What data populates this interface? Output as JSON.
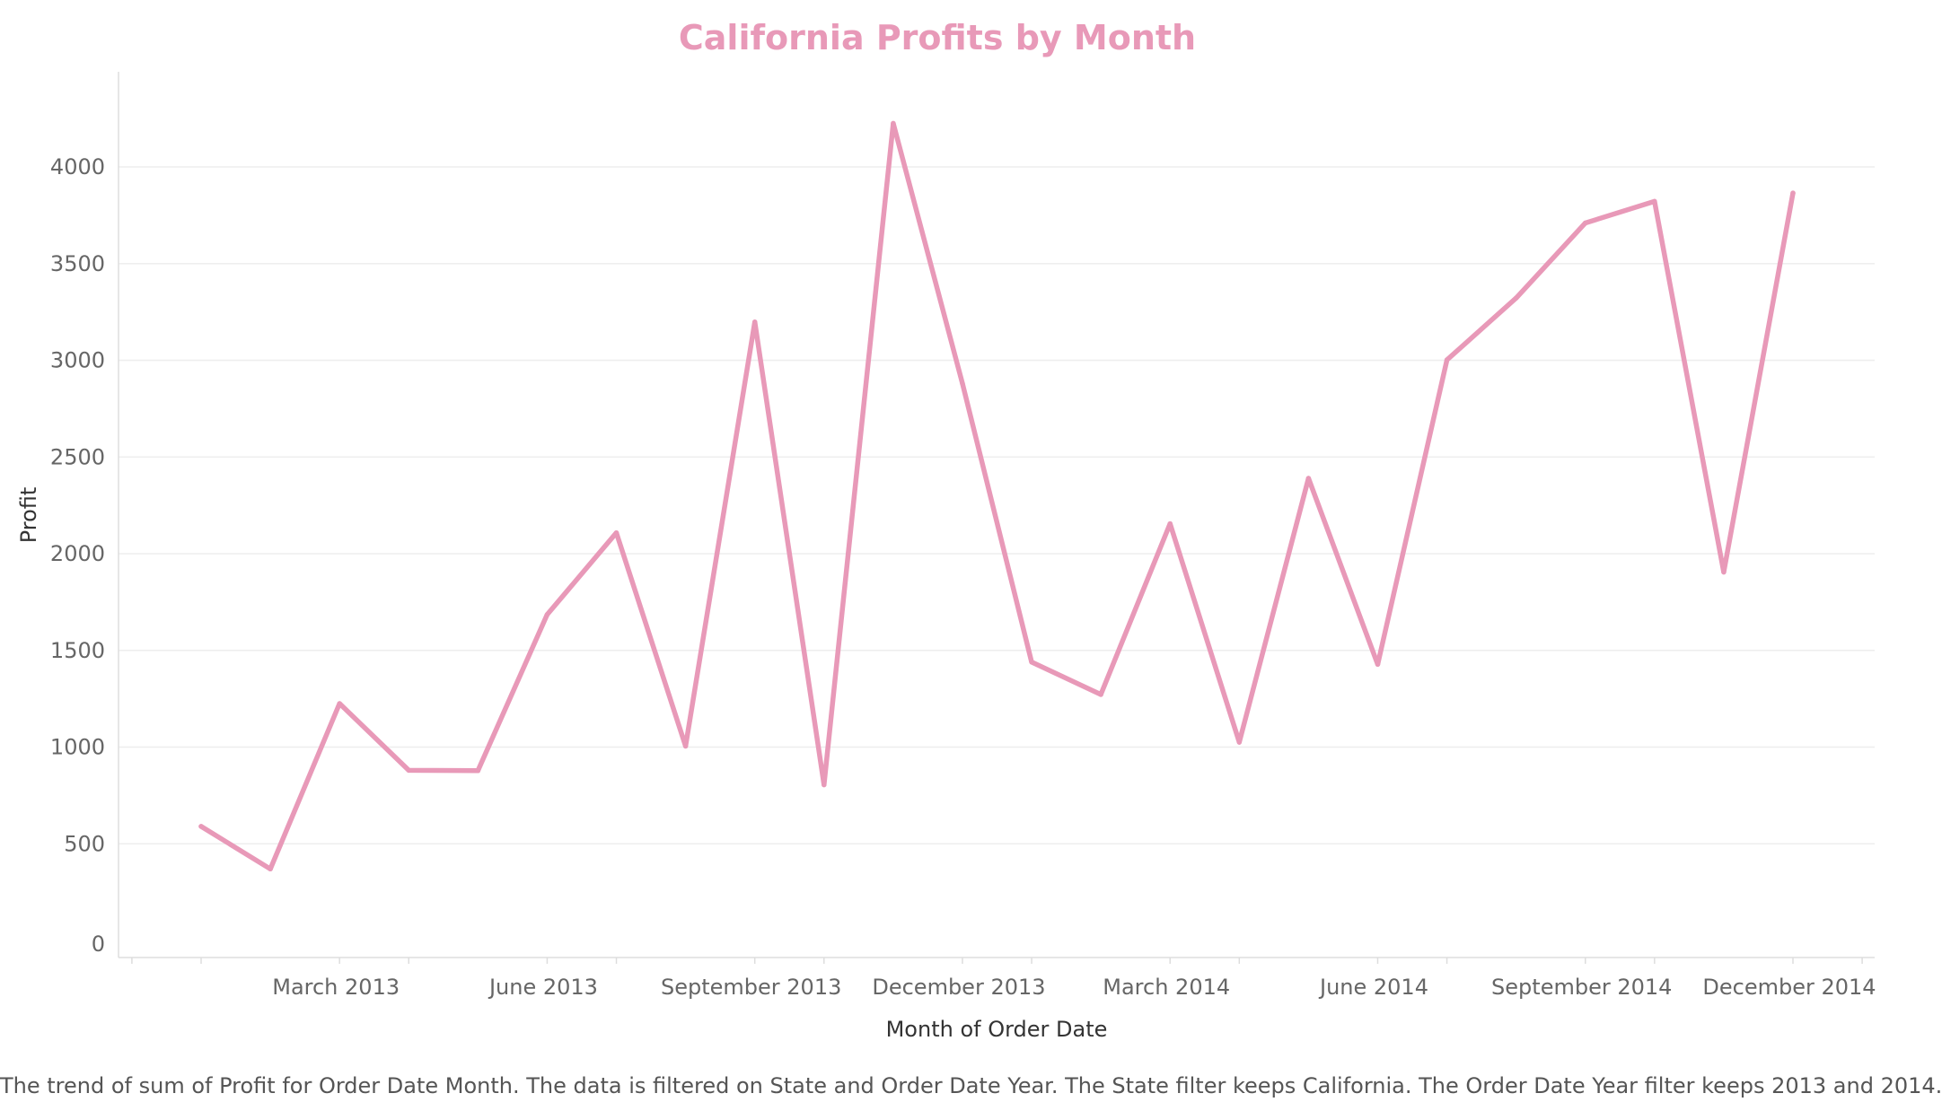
{
  "colors": {
    "series": "#e899b8",
    "title": "#e899b8",
    "grid": "#eeeeee",
    "axis": "#dddddd"
  },
  "caption": "The trend of sum of Profit for Order Date Month. The data is filtered on State and Order Date Year. The State filter keeps California. The Order Date Year filter keeps 2013 and 2014.",
  "chart_data": {
    "type": "line",
    "title": "California Profits by Month",
    "xlabel": "Month of Order Date",
    "ylabel": "Profit",
    "x": [
      "2013-01",
      "2013-02",
      "2013-03",
      "2013-04",
      "2013-05",
      "2013-06",
      "2013-07",
      "2013-08",
      "2013-09",
      "2013-10",
      "2013-11",
      "2013-12",
      "2014-01",
      "2014-02",
      "2014-03",
      "2014-04",
      "2014-05",
      "2014-06",
      "2014-07",
      "2014-08",
      "2014-09",
      "2014-10",
      "2014-11",
      "2014-12"
    ],
    "series": [
      {
        "values": [
          590,
          370,
          1225,
          880,
          878,
          1685,
          2108,
          1005,
          3198,
          805,
          4225,
          2880,
          1440,
          1272,
          2155,
          1025,
          2390,
          1428,
          3002,
          3322,
          3710,
          3822,
          1905,
          3865
        ]
      }
    ],
    "ylim": [
      0,
      4300
    ],
    "yticks": [
      0,
      500,
      1000,
      1500,
      2000,
      2500,
      3000,
      3500,
      4000
    ],
    "xticks": [
      {
        "x": "2013-03",
        "label": "March 2013"
      },
      {
        "x": "2013-06",
        "label": "June 2013"
      },
      {
        "x": "2013-09",
        "label": "September 2013"
      },
      {
        "x": "2013-12",
        "label": "December 2013"
      },
      {
        "x": "2014-03",
        "label": "March 2014"
      },
      {
        "x": "2014-06",
        "label": "June 2014"
      },
      {
        "x": "2014-09",
        "label": "September 2014"
      },
      {
        "x": "2014-12",
        "label": "December 2014"
      }
    ],
    "grid": true,
    "legend": "none"
  }
}
